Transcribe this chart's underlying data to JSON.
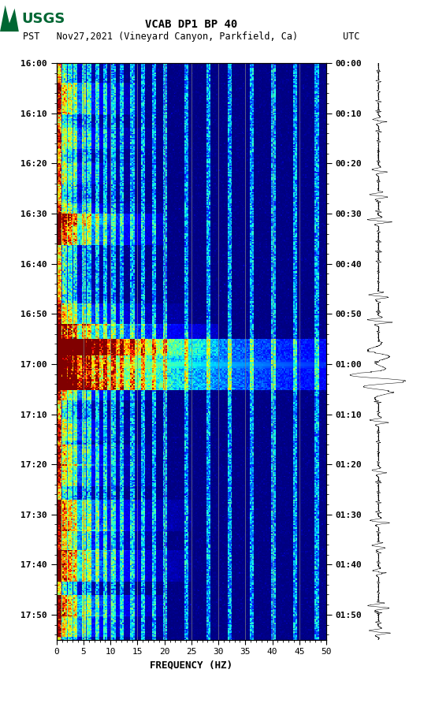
{
  "title_line1": "VCAB DP1 BP 40",
  "title_line2": "PST   Nov27,2021 (Vineyard Canyon, Parkfield, Ca)        UTC",
  "xlabel": "FREQUENCY (HZ)",
  "freq_min": 0,
  "freq_max": 50,
  "pst_yticks": [
    "16:00",
    "16:10",
    "16:20",
    "16:30",
    "16:40",
    "16:50",
    "17:00",
    "17:10",
    "17:20",
    "17:30",
    "17:40",
    "17:50"
  ],
  "utc_yticks": [
    "00:00",
    "00:10",
    "00:20",
    "00:30",
    "00:40",
    "00:50",
    "01:00",
    "01:10",
    "01:20",
    "01:30",
    "01:40",
    "01:50"
  ],
  "freq_ticks": [
    0,
    5,
    10,
    15,
    20,
    25,
    30,
    35,
    40,
    45,
    50
  ],
  "grid_freq_lines": [
    5,
    10,
    15,
    20,
    25,
    30,
    35,
    40,
    45
  ],
  "background_color": "#ffffff",
  "colormap": "jet",
  "fig_width": 5.52,
  "fig_height": 8.92,
  "dpi": 100,
  "n_time": 460,
  "n_freq": 200,
  "total_minutes": 115
}
